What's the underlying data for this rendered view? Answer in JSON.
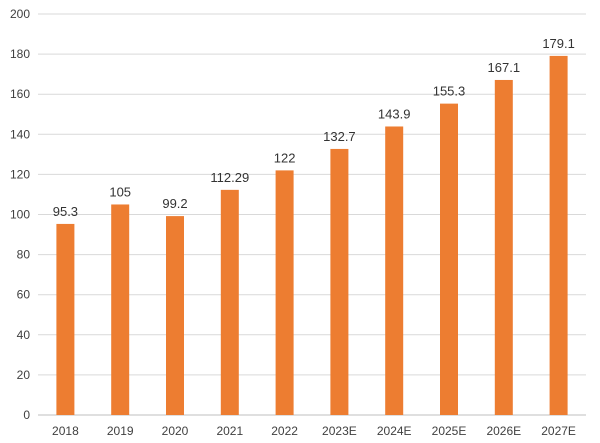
{
  "chart_data": {
    "type": "bar",
    "categories": [
      "2018",
      "2019",
      "2020",
      "2021",
      "2022",
      "2023E",
      "2024E",
      "2025E",
      "2026E",
      "2027E"
    ],
    "values": [
      95.3,
      105,
      99.2,
      112.29,
      122,
      132.7,
      143.9,
      155.3,
      167.1,
      179.1
    ],
    "value_labels": [
      "95.3",
      "105",
      "99.2",
      "112.29",
      "122",
      "132.7",
      "143.9",
      "155.3",
      "167.1",
      "179.1"
    ],
    "yticks": [
      "0",
      "20",
      "40",
      "60",
      "80",
      "100",
      "120",
      "140",
      "160",
      "180",
      "200"
    ],
    "title": "",
    "xlabel": "",
    "ylabel": "",
    "ylim": [
      0,
      200
    ],
    "grid": true,
    "bar_color": "#ed7d31"
  }
}
